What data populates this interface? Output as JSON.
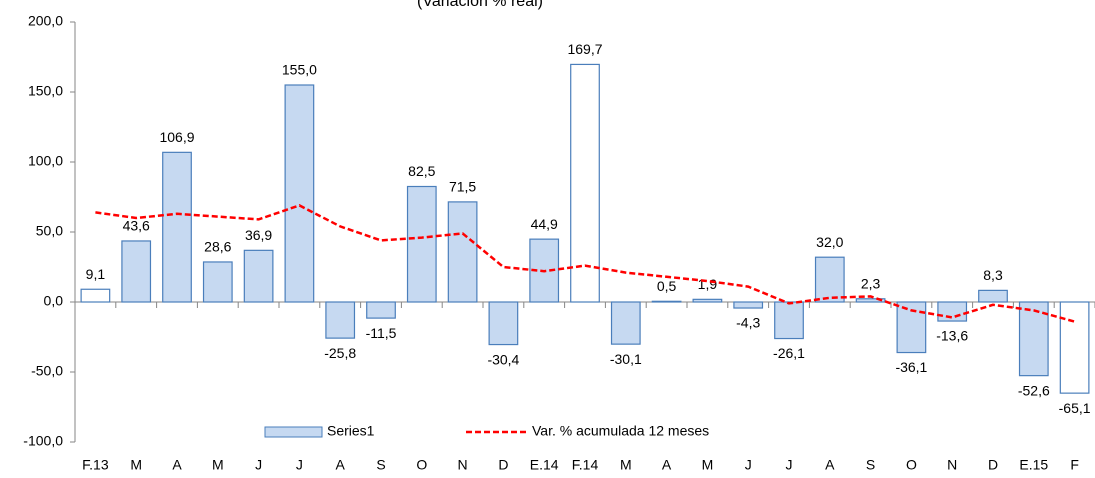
{
  "chart_data": {
    "type": "bar",
    "subtitle": "(Variación % real)",
    "categories": [
      "F.13",
      "M",
      "A",
      "M",
      "J",
      "J",
      "A",
      "S",
      "O",
      "N",
      "D",
      "E.14",
      "F.14",
      "M",
      "A",
      "M",
      "J",
      "J",
      "A",
      "S",
      "O",
      "N",
      "D",
      "E.15",
      "F"
    ],
    "series": [
      {
        "name": "Series1",
        "type": "bar",
        "color": "#c6d9f1",
        "stroke": "#4a7ebb",
        "bar_colors": [
          "#ffffff",
          "#c6d9f1",
          "#c6d9f1",
          "#c6d9f1",
          "#c6d9f1",
          "#c6d9f1",
          "#c6d9f1",
          "#c6d9f1",
          "#c6d9f1",
          "#c6d9f1",
          "#c6d9f1",
          "#c6d9f1",
          "#ffffff",
          "#c6d9f1",
          "#c6d9f1",
          "#c6d9f1",
          "#c6d9f1",
          "#c6d9f1",
          "#c6d9f1",
          "#c6d9f1",
          "#c6d9f1",
          "#c6d9f1",
          "#c6d9f1",
          "#c6d9f1",
          "#ffffff"
        ],
        "values": [
          9.1,
          43.6,
          106.9,
          28.6,
          36.9,
          155.0,
          -25.8,
          -11.5,
          82.5,
          71.5,
          -30.4,
          44.9,
          169.7,
          -30.1,
          0.5,
          1.9,
          -4.3,
          -26.1,
          32.0,
          2.3,
          -36.1,
          -13.6,
          8.3,
          -52.6,
          -65.1
        ],
        "value_labels": [
          "9,1",
          "43,6",
          "106,9",
          "28,6",
          "36,9",
          "155,0",
          "-25,8",
          "-11,5",
          "82,5",
          "71,5",
          "-30,4",
          "44,9",
          "169,7",
          "-30,1",
          "0,5",
          "1,9",
          "-4,3",
          "-26,1",
          "32,0",
          "2,3",
          "-36,1",
          "-13,6",
          "8,3",
          "-52,6",
          "-65,1"
        ]
      },
      {
        "name": "Var. % acumulada 12 meses",
        "type": "line",
        "color": "#ff0000",
        "values": [
          64,
          60,
          63,
          61,
          59,
          69,
          54,
          44,
          46,
          49,
          25,
          22,
          26,
          21,
          18,
          15,
          11,
          -1,
          3,
          4,
          -6,
          -11,
          -2,
          -6,
          -14
        ]
      }
    ],
    "ylim": [
      -100,
      200
    ],
    "yticks": [
      {
        "value": -100,
        "label": "-100,0"
      },
      {
        "value": -50,
        "label": "-50,0"
      },
      {
        "value": 0,
        "label": "0,0"
      },
      {
        "value": 50,
        "label": "50,0"
      },
      {
        "value": 100,
        "label": "100,0"
      },
      {
        "value": 150,
        "label": "150,0"
      },
      {
        "value": 200,
        "label": "200,0"
      }
    ],
    "legend": "bottom"
  }
}
